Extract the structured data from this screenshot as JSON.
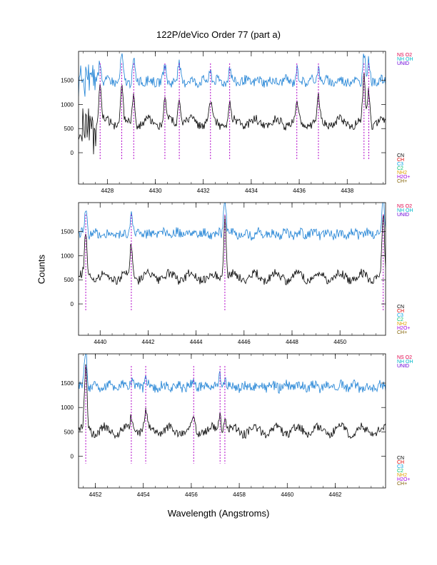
{
  "page": {
    "title": "122P/deVico Order 77 (part a)",
    "xlabel": "Wavelength (Angstroms)",
    "ylabel": "Counts"
  },
  "colors": {
    "flux": "#000000",
    "model": "#1a7fd4",
    "marker": "#b000c8"
  },
  "legend_top": [
    {
      "label": "NS O2",
      "color": "#e0004a"
    },
    {
      "label": "NH OH",
      "color": "#00b8c8"
    },
    {
      "label": "UNID",
      "color": "#6a00d8"
    }
  ],
  "legend_bottom": [
    {
      "label": "CN",
      "color": "#000000"
    },
    {
      "label": "CH",
      "color": "#e00000"
    },
    {
      "label": "C3",
      "color": "#00a0e0"
    },
    {
      "label": "C2",
      "color": "#00c070"
    },
    {
      "label": "NH2",
      "color": "#e0a000"
    },
    {
      "label": "H2O+",
      "color": "#a000e0"
    },
    {
      "label": "CH+",
      "color": "#806000"
    }
  ],
  "chart_data": [
    {
      "type": "line",
      "xlim": [
        4426.8,
        4439.6
      ],
      "ylim": [
        -650,
        2100
      ],
      "xticks": [
        "4428",
        "4430",
        "4432",
        "4434",
        "4436",
        "4438"
      ],
      "yticks": [
        "0",
        "500",
        "1000",
        "1500"
      ],
      "lines": [
        4427.7,
        4428.6,
        4429.1,
        4430.4,
        4431.0,
        4432.3,
        4433.1,
        4435.9,
        4436.8,
        4438.7,
        4438.9
      ],
      "flux_base": 620,
      "model_base": 1480,
      "peaks": [
        [
          4427.7,
          750
        ],
        [
          4428.6,
          850
        ],
        [
          4429.1,
          700
        ],
        [
          4430.4,
          500
        ],
        [
          4431.0,
          600
        ],
        [
          4432.3,
          400
        ],
        [
          4433.1,
          450
        ],
        [
          4435.9,
          400
        ],
        [
          4436.8,
          500
        ],
        [
          4438.7,
          900
        ],
        [
          4438.9,
          700
        ]
      ],
      "noisy_start": true
    },
    {
      "type": "line",
      "xlim": [
        4439.1,
        4451.9
      ],
      "ylim": [
        -650,
        2100
      ],
      "xticks": [
        "4440",
        "4442",
        "4444",
        "4446",
        "4448",
        "4450"
      ],
      "yticks": [
        "0",
        "500",
        "1000",
        "1500"
      ],
      "lines": [
        4439.4,
        4441.3,
        4445.2,
        4451.8
      ],
      "flux_base": 560,
      "model_base": 1450,
      "peaks": [
        [
          4439.4,
          900
        ],
        [
          4441.3,
          700
        ],
        [
          4445.2,
          1300
        ],
        [
          4451.8,
          1300
        ]
      ],
      "noisy_start": false
    },
    {
      "type": "line",
      "xlim": [
        4451.3,
        4464.1
      ],
      "ylim": [
        -650,
        2100
      ],
      "xticks": [
        "4452",
        "4454",
        "4456",
        "4458",
        "4460",
        "4462"
      ],
      "yticks": [
        "0",
        "500",
        "1000",
        "1500"
      ],
      "lines": [
        4451.6,
        4453.5,
        4454.1,
        4456.1,
        4457.2,
        4457.4
      ],
      "flux_base": 530,
      "model_base": 1430,
      "peaks": [
        [
          4451.6,
          1300
        ],
        [
          4453.5,
          250
        ],
        [
          4454.1,
          350
        ],
        [
          4456.1,
          250
        ],
        [
          4457.2,
          350
        ],
        [
          4457.4,
          250
        ]
      ],
      "noisy_start": false
    }
  ]
}
